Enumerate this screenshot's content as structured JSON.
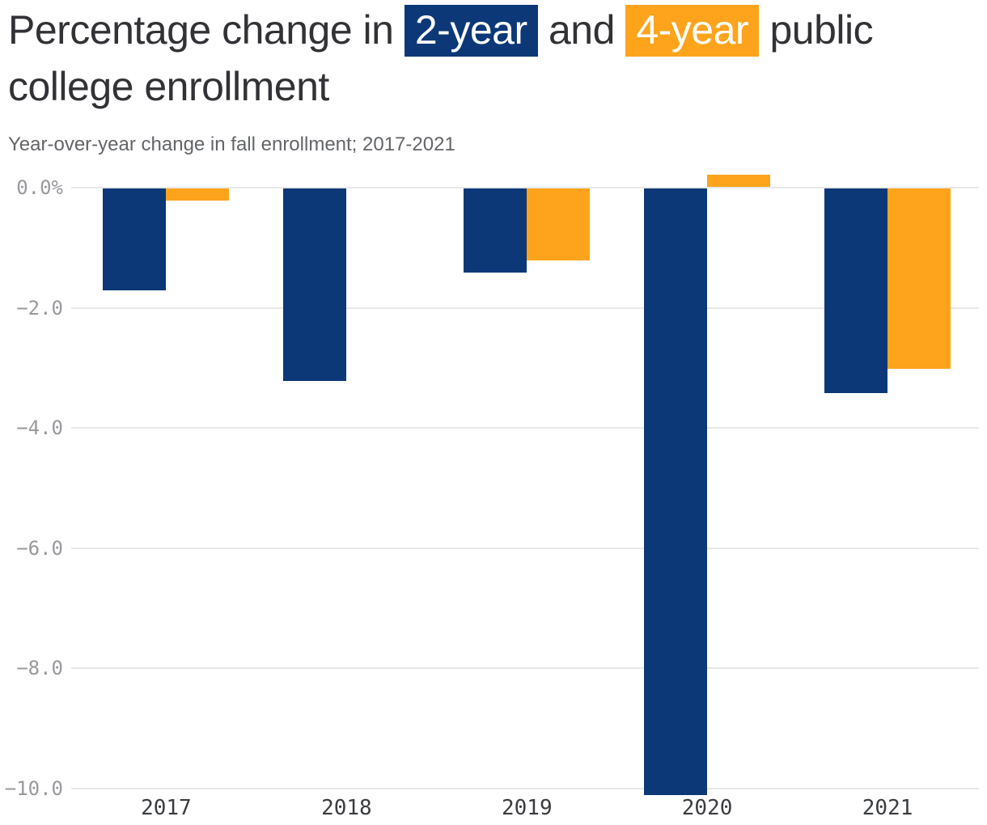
{
  "header": {
    "title": {
      "prefix": "Percentage change in ",
      "highlight_2yr": "2-year",
      "between": " and ",
      "highlight_4yr": "4-year",
      "suffix": " public college enrollment"
    },
    "subtitle": "Year-over-year change in fall enrollment; 2017-2021"
  },
  "colors": {
    "navy": "#0c3878",
    "orange": "#fda41c",
    "title_text": "#323236",
    "subtitle_text": "#636568",
    "tick_text": "#98999c",
    "xlabel_text": "#3a3c3f",
    "gridline": "#e8e8e9",
    "background": "#ffffff"
  },
  "chart_data": {
    "type": "bar",
    "title": "Percentage change in 2-year and 4-year public college enrollment",
    "subtitle": "Year-over-year change in fall enrollment; 2017-2021",
    "unit": "%",
    "categories": [
      "2017",
      "2018",
      "2019",
      "2020",
      "2021"
    ],
    "series": [
      {
        "name": "2-year",
        "color": "#0c3878",
        "values": [
          -1.7,
          -3.2,
          -1.4,
          -10.1,
          -3.4
        ]
      },
      {
        "name": "4-year",
        "color": "#fda41c",
        "values": [
          -0.2,
          0.0,
          -1.2,
          0.2,
          -3.0
        ]
      }
    ],
    "ylim": [
      -10.5,
      0.5
    ],
    "y_ticks": [
      {
        "label": "0.0%",
        "value": 0
      },
      {
        "label": "−2.0",
        "value": -2
      },
      {
        "label": "−4.0",
        "value": -4
      },
      {
        "label": "−6.0",
        "value": -6
      },
      {
        "label": "−8.0",
        "value": -8
      },
      {
        "label": "−10.0",
        "value": -10
      }
    ],
    "grid": true,
    "legend_position": "title-inline-highlights"
  }
}
